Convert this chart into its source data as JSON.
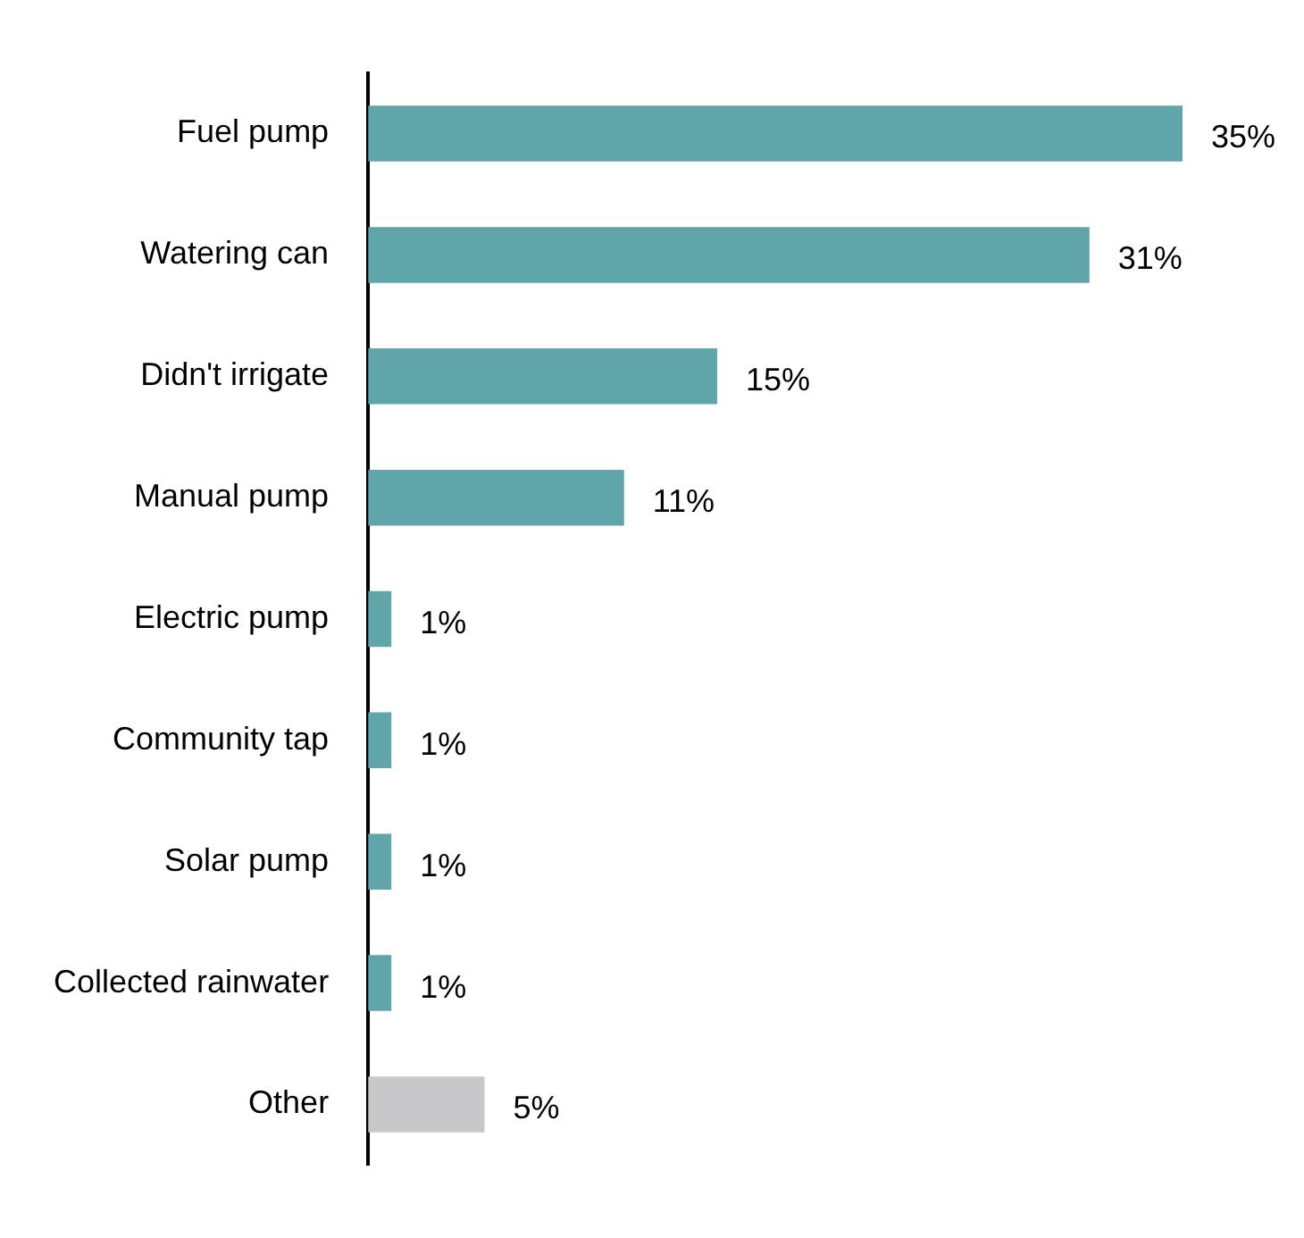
{
  "chart_data": {
    "type": "bar",
    "orientation": "horizontal",
    "categories": [
      "Fuel pump",
      "Watering can",
      "Didn't irrigate",
      "Manual pump",
      "Electric pump",
      "Community tap",
      "Solar pump",
      "Collected rainwater",
      "Other"
    ],
    "values": [
      35,
      31,
      15,
      11,
      1,
      1,
      1,
      1,
      5
    ],
    "colors": [
      "#5fa5a9",
      "#5fa5a9",
      "#5fa5a9",
      "#5fa5a9",
      "#5fa5a9",
      "#5fa5a9",
      "#5fa5a9",
      "#5fa5a9",
      "#c8c8ca"
    ],
    "value_labels": [
      "35%",
      "31%",
      "15%",
      "11%",
      "1%",
      "1%",
      "1%",
      "1%",
      "5%"
    ],
    "legend": false
  }
}
